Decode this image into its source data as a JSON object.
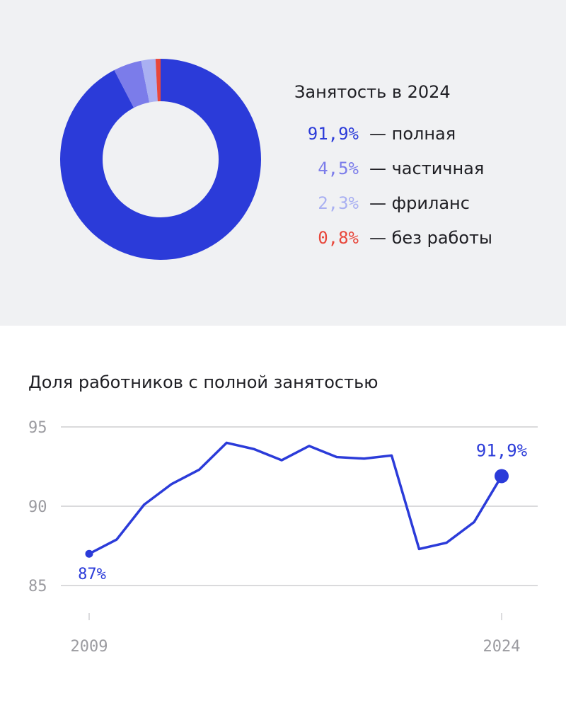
{
  "chart_data": [
    {
      "type": "pie",
      "title": "Занятость в 2024",
      "slices": [
        {
          "value": 91.9,
          "value_label": "91,9%",
          "label": "— полная",
          "color": "#2b3bd9"
        },
        {
          "value": 4.5,
          "value_label": "4,5%",
          "label": "— частичная",
          "color": "#7b7cea"
        },
        {
          "value": 2.3,
          "value_label": "2,3%",
          "label": "— фриланс",
          "color": "#a9b0f2"
        },
        {
          "value": 0.8,
          "value_label": "0,8%",
          "label": "— без работы",
          "color": "#e8473b"
        }
      ]
    },
    {
      "type": "line",
      "title": "Доля работников с полной занятостью",
      "x": [
        2009,
        2010,
        2011,
        2012,
        2013,
        2014,
        2015,
        2016,
        2017,
        2018,
        2019,
        2020,
        2021,
        2022,
        2023,
        2024
      ],
      "x_tick_labels": [
        "2009",
        "2024"
      ],
      "y_tick_labels": [
        "95",
        "90",
        "85"
      ],
      "yticks": [
        95,
        90,
        85
      ],
      "ylim": [
        84.5,
        95.5
      ],
      "grid": true,
      "series": [
        {
          "values": [
            87.0,
            87.9,
            90.1,
            91.4,
            92.3,
            94.0,
            93.6,
            92.9,
            93.8,
            93.1,
            93.0,
            93.2,
            87.3,
            87.7,
            89.0,
            91.9
          ],
          "color": "#2b3bd9"
        }
      ],
      "annotations": [
        {
          "x": 2009,
          "y": 87.0,
          "text": "87%"
        },
        {
          "x": 2024,
          "y": 91.9,
          "text": "91,9%"
        }
      ]
    }
  ]
}
